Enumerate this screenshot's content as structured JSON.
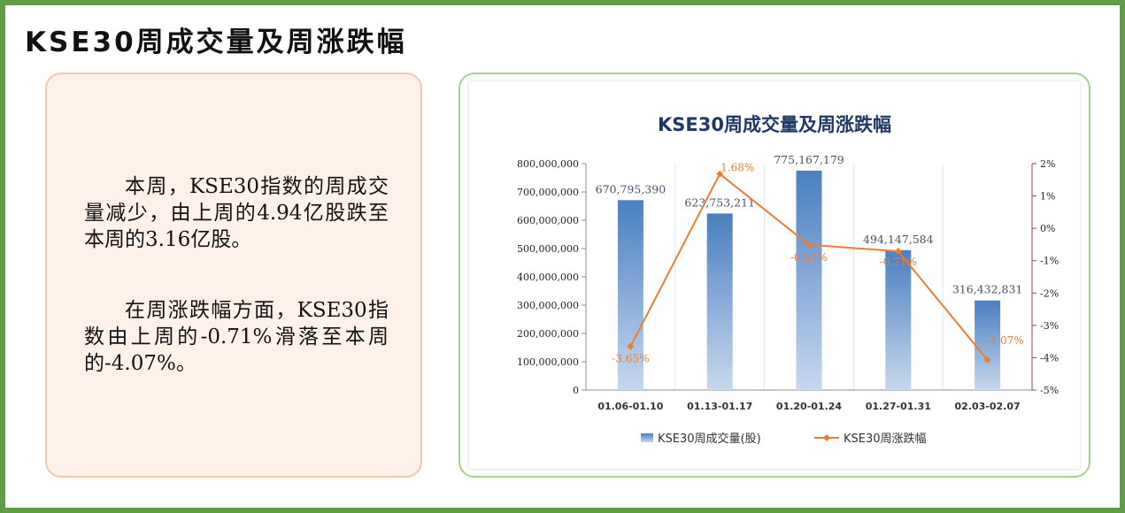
{
  "page": {
    "title": "KSE30周成交量及周涨跌幅"
  },
  "summary": {
    "paragraph_1": "本周，KSE30指数的周成交量减少，由上周的4.94亿股跌至本周的3.16亿股。",
    "paragraph_2": "在周涨跌幅方面，KSE30指数由上周的-0.71%滑落至本周的-4.07%。"
  },
  "colors": {
    "frame_border": "#5f9e45",
    "card_background": "#fdf1ea",
    "chart_border": "#a9d18e",
    "bar": "#4a7fc1",
    "line": "#ed7d31",
    "chart_title": "#1f3864",
    "right_axis": "#8b4a5a"
  },
  "chart_data": {
    "type": "bar",
    "title": "KSE30周成交量及周涨跌幅",
    "categories": [
      "01.06-01.10",
      "01.13-01.17",
      "01.20-01.24",
      "01.27-01.31",
      "02.03-02.07"
    ],
    "series": [
      {
        "name": "KSE30周成交量(股)",
        "type": "bar",
        "axis": "left",
        "values": [
          670795390,
          623753211,
          775167179,
          494147584,
          316432831
        ],
        "labels": [
          "670,795,390",
          "623,753,211",
          "775,167,179",
          "494,147,584",
          "316,432,831"
        ]
      },
      {
        "name": "KSE30周涨跌幅",
        "type": "line",
        "axis": "right",
        "values": [
          -3.65,
          1.68,
          -0.51,
          -0.71,
          -4.07
        ],
        "labels": [
          "-3.65%",
          "1.68%",
          "-0.51%",
          "-0.71%",
          "-4.07%"
        ]
      }
    ],
    "y_left": {
      "range": [
        0,
        800000000
      ],
      "ticks": [
        0,
        100000000,
        200000000,
        300000000,
        400000000,
        500000000,
        600000000,
        700000000,
        800000000
      ],
      "tick_labels": [
        "0",
        "100,000,000",
        "200,000,000",
        "300,000,000",
        "400,000,000",
        "500,000,000",
        "600,000,000",
        "700,000,000",
        "800,000,000"
      ]
    },
    "y_right": {
      "range": [
        -5,
        2
      ],
      "ticks": [
        2,
        1,
        0,
        -1,
        -2,
        -3,
        -4,
        -5
      ],
      "tick_labels": [
        "2%",
        "1%",
        "0%",
        "-1%",
        "-2%",
        "-3%",
        "-4%",
        "-5%"
      ]
    },
    "grid": "vertical",
    "legend": "bottom"
  }
}
